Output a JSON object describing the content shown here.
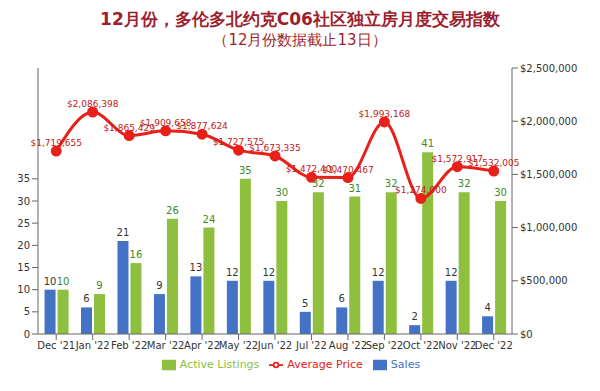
{
  "chart_data": {
    "type": "bar",
    "title": "12月份，多伦多北约克C06社区独立房月度交易指数",
    "subtitle": "（12月份数据截止13日）",
    "categories": [
      "Dec '21",
      "Jan '22",
      "Feb '22",
      "Mar '22",
      "Apr '22",
      "May '22",
      "Jun '22",
      "Jul '22",
      "Aug '22",
      "Sep '22",
      "Oct '22",
      "Nov '22",
      "Dec '22"
    ],
    "series": [
      {
        "name": "Sales",
        "type": "bar",
        "color": "#4472c4",
        "values": [
          10,
          6,
          21,
          9,
          13,
          12,
          12,
          5,
          6,
          12,
          2,
          12,
          4
        ]
      },
      {
        "name": "Active Listings",
        "type": "bar",
        "color": "#8fbf3f",
        "values": [
          10,
          9,
          16,
          26,
          24,
          35,
          30,
          32,
          31,
          32,
          41,
          32,
          30
        ]
      },
      {
        "name": "Average Price",
        "type": "line",
        "axis": "y2",
        "color": "#e8201a",
        "marker": "circle",
        "values": [
          1719655,
          2086398,
          1865429,
          1909658,
          1877624,
          1727575,
          1673335,
          1472400,
          1470467,
          1993168,
          1274000,
          1572917,
          1532005
        ],
        "value_labels": [
          "$1,719,655",
          "$2,086,398",
          "$1,865,429",
          "$1,909,658",
          "$1,877,624",
          "$1,727,575",
          "$1,673,335",
          "$1,472,400",
          "$1,470,467",
          "$1,993,168",
          "$1,274,000",
          "$1,572,917",
          "$1,532,005"
        ]
      }
    ],
    "ylim": [
      0,
      60
    ],
    "yticks": [
      0,
      5,
      10,
      15,
      20,
      25,
      30,
      35
    ],
    "y2lim": [
      0,
      2500000
    ],
    "y2ticks": [
      {
        "value": 0,
        "label": "$0"
      },
      {
        "value": 500000,
        "label": "$500,000"
      },
      {
        "value": 1000000,
        "label": "$1,000,000"
      },
      {
        "value": 1500000,
        "label": "$1,500,000"
      },
      {
        "value": 2000000,
        "label": "$2,000,000"
      },
      {
        "value": 2500000,
        "label": "$2,500,000"
      }
    ],
    "data_labels": true,
    "legend": "bottom",
    "grid": false
  }
}
